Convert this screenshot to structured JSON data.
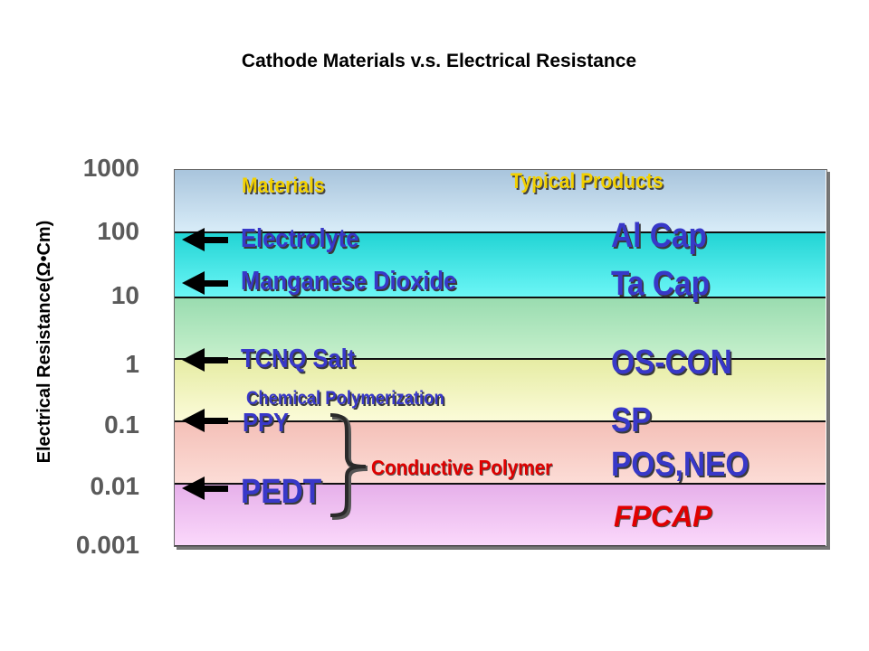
{
  "chart_data": {
    "type": "table",
    "title": "Cathode Materials v.s. Electrical Resistance",
    "ylabel": "Electrical Resistance(Ω•Cm)",
    "yscale": "log",
    "ylim": [
      0.001,
      1000
    ],
    "y_ticks": [
      "1000",
      "100",
      "10",
      "1",
      "0.1",
      "0.01",
      "0.001"
    ],
    "column_headers": {
      "materials": "Materials",
      "products": "Typical Products"
    },
    "materials": [
      {
        "name": "Electrolyte",
        "resistance": 100
      },
      {
        "name": "Manganese Dioxide",
        "resistance": 10
      },
      {
        "name": "TCNQ Salt",
        "resistance": 1
      },
      {
        "name": "PPY",
        "resistance": 0.1
      },
      {
        "name": "PEDT",
        "resistance": 0.01
      }
    ],
    "products": [
      {
        "name": "Al Cap"
      },
      {
        "name": "Ta Cap"
      },
      {
        "name": "OS-CON"
      },
      {
        "name": "SP"
      },
      {
        "name": "POS,NEO"
      },
      {
        "name": "FPCAP"
      }
    ],
    "annotations": {
      "chemical_polymerization": "Chemical Polymerization",
      "conductive_polymer": "Conductive Polymer"
    },
    "band_colors": [
      "#b6cfe4",
      "#2ee0e0",
      "#a8e6b8",
      "#eef2b2",
      "#f7cac2",
      "#ecbcec"
    ]
  }
}
